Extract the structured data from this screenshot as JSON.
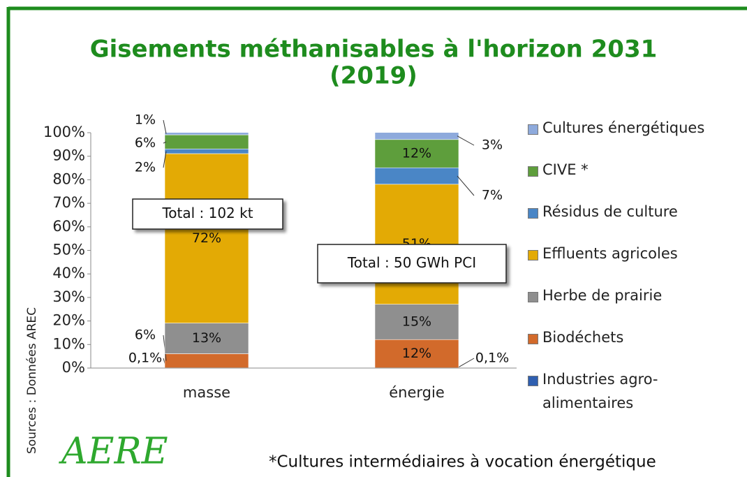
{
  "chart_data": {
    "type": "stacked_bar",
    "title": "Gisements méthanisables à l'horizon 2031",
    "subtitle": "(2019)",
    "categories": [
      "masse",
      "énergie"
    ],
    "series": [
      {
        "name": "Industries agro-alimentaires",
        "color": "#2f5fb0",
        "values": [
          0.1,
          0.1
        ],
        "value_labels": [
          "0,1%",
          "0,1%"
        ]
      },
      {
        "name": "Biodéchets",
        "color": "#d26a2b",
        "values": [
          6,
          12
        ],
        "value_labels": [
          "6%",
          "12%"
        ]
      },
      {
        "name": "Herbe de prairie",
        "color": "#8f8f8f",
        "values": [
          13,
          15
        ],
        "value_labels": [
          "13%",
          "15%"
        ]
      },
      {
        "name": "Effluents agricoles",
        "color": "#e3aa05",
        "values": [
          72,
          51
        ],
        "value_labels": [
          "72%",
          "51%"
        ]
      },
      {
        "name": "Résidus de culture",
        "color": "#4a86c6",
        "values": [
          2,
          7
        ],
        "value_labels": [
          "2%",
          "7%"
        ]
      },
      {
        "name": "CIVE *",
        "color": "#5e9e3c",
        "values": [
          6,
          12
        ],
        "value_labels": [
          "6%",
          "12%"
        ]
      },
      {
        "name": "Cultures énergétiques",
        "color": "#8eaadc",
        "values": [
          1,
          3
        ],
        "value_labels": [
          "1%",
          "3%"
        ]
      }
    ],
    "ylim": [
      0,
      100
    ],
    "yticks": [
      {
        "value": 0,
        "label": "0%"
      },
      {
        "value": 10,
        "label": "10%"
      },
      {
        "value": 20,
        "label": "20%"
      },
      {
        "value": 30,
        "label": "30%"
      },
      {
        "value": 40,
        "label": "40%"
      },
      {
        "value": 50,
        "label": "50%"
      },
      {
        "value": 60,
        "label": "60%"
      },
      {
        "value": 70,
        "label": "70%"
      },
      {
        "value": 80,
        "label": "80%"
      },
      {
        "value": 90,
        "label": "90%"
      },
      {
        "value": 100,
        "label": "100%"
      }
    ],
    "annotations": [
      "Total : 102 kt",
      "Total : 50 GWh PCI"
    ],
    "source": "Sources : Données AREC",
    "logo": "AERE",
    "footnote": "*Cultures intermédiaires à vocation énergétique",
    "legend": "right"
  }
}
